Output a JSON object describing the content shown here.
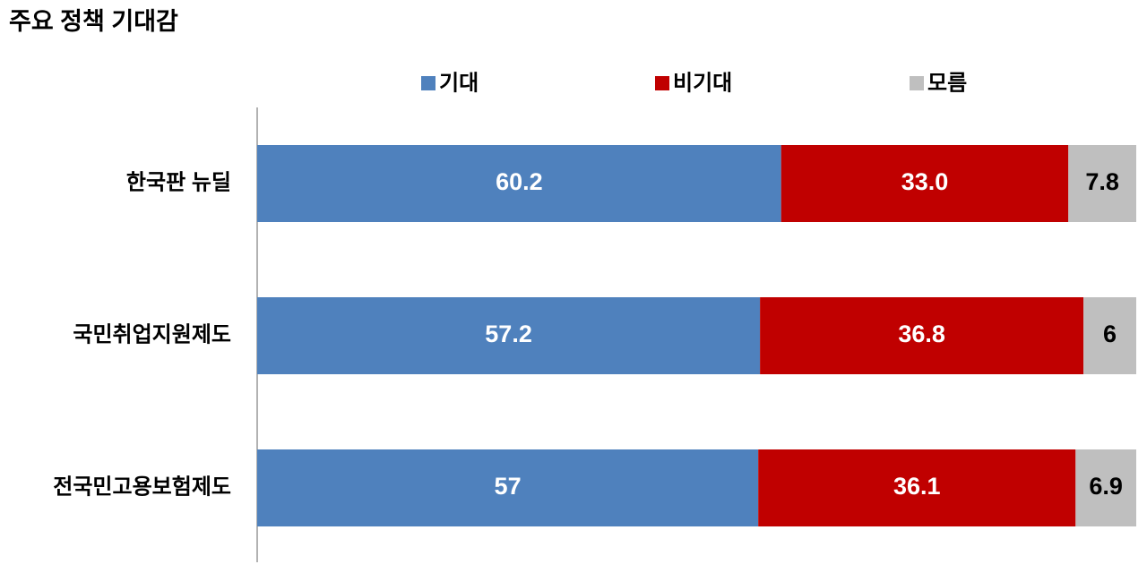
{
  "chart_data": {
    "type": "bar",
    "orientation": "horizontal",
    "stacked": "percent",
    "title": "주요 정책 기대감",
    "categories": [
      "한국판 뉴딜",
      "국민취업지원제도",
      "전국민고용보험제도"
    ],
    "series": [
      {
        "name": "기대",
        "color": "#4f81bd",
        "label_color": "#ffffff",
        "values": [
          60.2,
          57.2,
          57
        ]
      },
      {
        "name": "비기대",
        "color": "#c00000",
        "label_color": "#ffffff",
        "values": [
          33.0,
          36.8,
          36.1
        ],
        "value_labels": [
          "33.0",
          "36.8",
          "36.1"
        ]
      },
      {
        "name": "모름",
        "color": "#bfbfbf",
        "label_color": "#000000",
        "values": [
          7.8,
          6,
          6.9
        ]
      }
    ]
  }
}
